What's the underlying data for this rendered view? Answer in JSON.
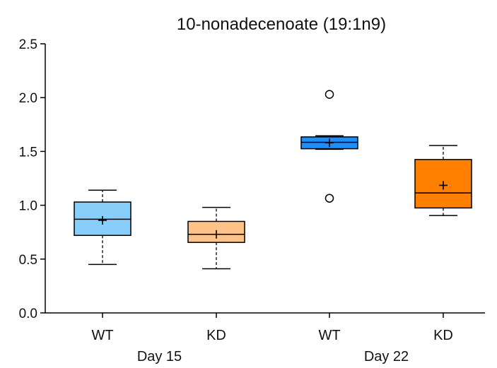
{
  "chart_data": {
    "type": "boxplot",
    "title": "10-nonadecenoate (19:1n9)",
    "xlabel": "",
    "ylabel": "",
    "ylim": [
      0,
      2.5
    ],
    "yticks": [
      0.0,
      0.5,
      1.0,
      1.5,
      2.0,
      2.5
    ],
    "ytick_labels": [
      "0.0",
      "0.5",
      "1.0",
      "1.5",
      "2.0",
      "2.5"
    ],
    "categories": [
      "WT",
      "KD",
      "WT",
      "KD"
    ],
    "groups": [
      {
        "label": "Day 15",
        "categories": [
          0,
          1
        ]
      },
      {
        "label": "Day 22",
        "categories": [
          2,
          3
        ]
      }
    ],
    "boxes": [
      {
        "category": "WT",
        "group": "Day 15",
        "color": "#87CEFA",
        "whisker_low": 0.45,
        "q1": 0.72,
        "median": 0.87,
        "q3": 1.03,
        "whisker_high": 1.14,
        "mean": 0.86,
        "outliers": []
      },
      {
        "category": "KD",
        "group": "Day 15",
        "color": "#FFC389",
        "whisker_low": 0.41,
        "q1": 0.655,
        "median": 0.73,
        "q3": 0.85,
        "whisker_high": 0.98,
        "mean": 0.73,
        "outliers": []
      },
      {
        "category": "WT",
        "group": "Day 22",
        "color": "#1E8EFF",
        "whisker_low": 1.52,
        "q1": 1.525,
        "median": 1.585,
        "q3": 1.635,
        "whisker_high": 1.645,
        "mean": 1.58,
        "outliers": [
          2.03,
          1.065
        ]
      },
      {
        "category": "KD",
        "group": "Day 22",
        "color": "#FF8000",
        "whisker_low": 0.905,
        "q1": 0.975,
        "median": 1.115,
        "q3": 1.425,
        "whisker_high": 1.555,
        "mean": 1.185,
        "outliers": []
      }
    ],
    "grid": false,
    "legend": "none"
  }
}
